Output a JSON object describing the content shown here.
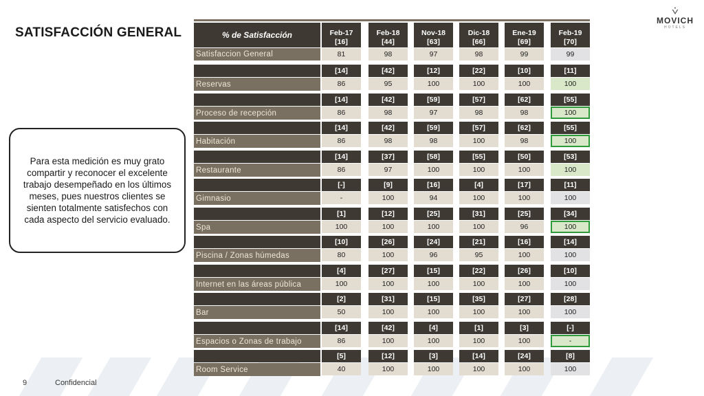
{
  "page": {
    "title": "SATISFACCIÓN GENERAL",
    "logo_name": "MOVICH",
    "logo_sub": "HOTELS",
    "callout": "Para esta medición es muy grato compartir  y reconocer el excelente trabajo desempeñado en los últimos meses, pues nuestros clientes se sienten totalmente satisfechos con cada aspecto del servicio evaluado.",
    "page_number": "9",
    "footer": "Confidencial"
  },
  "table": {
    "header_label": "% de Satisfacción",
    "columns": [
      {
        "month": "Feb-17",
        "n": "[16]"
      },
      {
        "month": "Feb-18",
        "n": "[44]"
      },
      {
        "month": "Nov-18",
        "n": "[63]"
      },
      {
        "month": "Dic-18",
        "n": "[66]"
      },
      {
        "month": "Ene-19",
        "n": "[69]"
      },
      {
        "month": "Feb-19",
        "n": "[70]"
      }
    ],
    "general": {
      "label": "Satisfaccion General",
      "values": [
        "81",
        "98",
        "97",
        "98",
        "99",
        "99"
      ]
    },
    "sections": [
      {
        "label": "Reservas",
        "counts": [
          "[14]",
          "[42]",
          "[12]",
          "[22]",
          "[10]",
          "[11]"
        ],
        "values": [
          "86",
          "95",
          "100",
          "100",
          "100",
          "100"
        ],
        "last_style": "green"
      },
      {
        "label": "Proceso de recepción",
        "counts": [
          "[14]",
          "[42]",
          "[59]",
          "[57]",
          "[62]",
          "[55]"
        ],
        "values": [
          "86",
          "98",
          "97",
          "98",
          "98",
          "100"
        ],
        "last_style": "outline"
      },
      {
        "label": "Habitación",
        "counts": [
          "[14]",
          "[42]",
          "[59]",
          "[57]",
          "[62]",
          "[55]"
        ],
        "values": [
          "86",
          "98",
          "98",
          "100",
          "98",
          "100"
        ],
        "last_style": "outline"
      },
      {
        "label": "Restaurante",
        "counts": [
          "[14]",
          "[37]",
          "[58]",
          "[55]",
          "[50]",
          "[53]"
        ],
        "values": [
          "86",
          "97",
          "100",
          "100",
          "100",
          "100"
        ],
        "last_style": "green"
      },
      {
        "label": "Gimnasio",
        "counts": [
          "[-]",
          "[9]",
          "[16]",
          "[4]",
          "[17]",
          "[11]"
        ],
        "values": [
          "-",
          "100",
          "94",
          "100",
          "100",
          "100"
        ],
        "last_style": "gray"
      },
      {
        "label": "Spa",
        "counts": [
          "[1]",
          "[12]",
          "[25]",
          "[31]",
          "[25]",
          "[34]"
        ],
        "values": [
          "100",
          "100",
          "100",
          "100",
          "96",
          "100"
        ],
        "last_style": "outline"
      },
      {
        "label": "Piscina / Zonas húmedas",
        "counts": [
          "[10]",
          "[26]",
          "[24]",
          "[21]",
          "[16]",
          "[14]"
        ],
        "values": [
          "80",
          "100",
          "96",
          "95",
          "100",
          "100"
        ],
        "last_style": "gray"
      },
      {
        "label": "Internet en las áreas pública",
        "counts": [
          "[4]",
          "[27]",
          "[15]",
          "[22]",
          "[26]",
          "[10]"
        ],
        "values": [
          "100",
          "100",
          "100",
          "100",
          "100",
          "100"
        ],
        "last_style": "gray"
      },
      {
        "label": "Bar",
        "counts": [
          "[2]",
          "[31]",
          "[15]",
          "[35]",
          "[27]",
          "[28]"
        ],
        "values": [
          "50",
          "100",
          "100",
          "100",
          "100",
          "100"
        ],
        "last_style": "gray"
      },
      {
        "label": "Espacios o Zonas de trabajo",
        "counts": [
          "[14]",
          "[42]",
          "[4]",
          "[1]",
          "[3]",
          "[-]"
        ],
        "values": [
          "86",
          "100",
          "100",
          "100",
          "100",
          "-"
        ],
        "last_style": "outline"
      },
      {
        "label": "Room Service",
        "counts": [
          "[5]",
          "[12]",
          "[3]",
          "[14]",
          "[24]",
          "[8]"
        ],
        "values": [
          "40",
          "100",
          "100",
          "100",
          "100",
          "100"
        ],
        "last_style": "gray"
      }
    ]
  },
  "colors": {
    "dark": "#3e3933",
    "light": "#e2dcd1",
    "label_bg": "#7a7062",
    "green": "#d8e8c8",
    "gray": "#e2e2e4",
    "outline": "#2f9a3a"
  }
}
